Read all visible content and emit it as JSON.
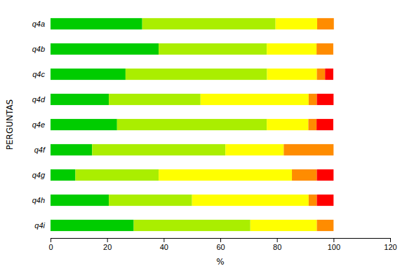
{
  "chart_data": {
    "type": "bar",
    "orientation": "horizontal",
    "stacked": true,
    "grid": false,
    "xlabel": "%",
    "ylabel": "PERGUNTAS",
    "categories": [
      "q4a",
      "q4b",
      "q4c",
      "q4d",
      "q4e",
      "q4f",
      "q4g",
      "q4h",
      "q4i"
    ],
    "series": [
      {
        "color": "#00CC00",
        "values": [
          32.4,
          38.2,
          26.5,
          20.6,
          23.5,
          14.7,
          8.8,
          20.6,
          29.4
        ]
      },
      {
        "color": "#AAEE00",
        "values": [
          47.1,
          38.2,
          50.0,
          32.4,
          52.9,
          47.1,
          29.4,
          29.4,
          41.2
        ]
      },
      {
        "color": "#FFFF00",
        "values": [
          14.7,
          17.6,
          17.6,
          38.2,
          14.7,
          20.6,
          47.1,
          41.2,
          23.5
        ]
      },
      {
        "color": "#FF8C00",
        "values": [
          5.9,
          5.9,
          2.9,
          2.9,
          2.9,
          17.6,
          8.8,
          2.9,
          5.9
        ]
      },
      {
        "color": "#FF0000",
        "values": [
          0.0,
          0.0,
          2.9,
          5.9,
          5.9,
          0.0,
          5.9,
          5.9,
          0.0
        ]
      }
    ],
    "xlim": [
      0,
      120
    ],
    "xticks": [
      0,
      20,
      40,
      60,
      80,
      100,
      120
    ]
  }
}
